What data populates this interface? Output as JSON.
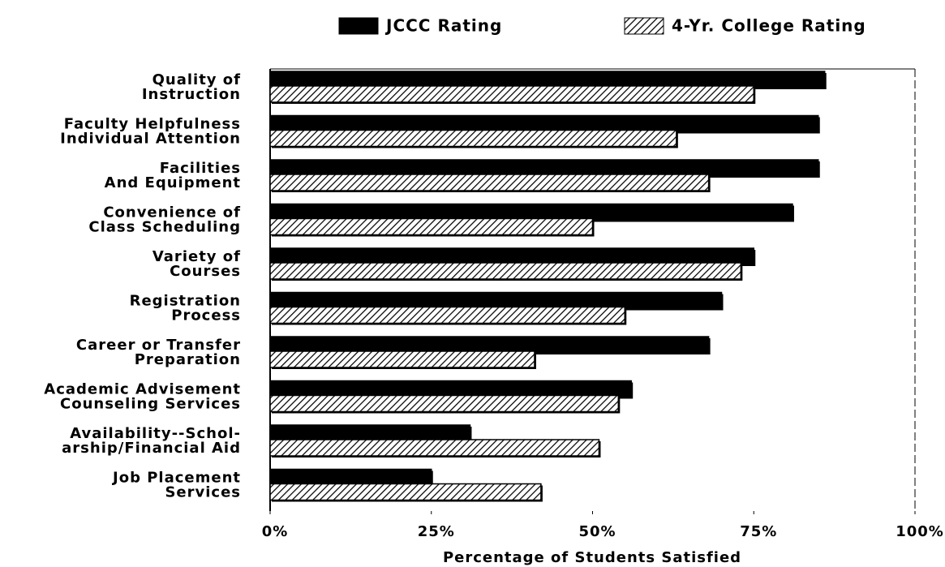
{
  "chart_data": {
    "type": "hbar",
    "x_label": "Percentage of Students Satisfied",
    "categories": [
      "Quality of\nInstruction",
      "Faculty Helpfulness\nIndividual Attention",
      "Facilities\nAnd Equipment",
      "Convenience of\nClass Scheduling",
      "Variety of\nCourses",
      "Registration\nProcess",
      "Career or Transfer\nPreparation",
      "Academic Advisement\nCounseling Services",
      "Availability--Schol-\narship/Financial Aid",
      "Job Placement\nServices"
    ],
    "series": [
      {
        "name": "JCCC Rating",
        "color": "#000000",
        "fill": "solid",
        "values": [
          86,
          85,
          85,
          81,
          75,
          70,
          68,
          56,
          31,
          25
        ]
      },
      {
        "name": "4-Yr. College Rating",
        "color": "#000000",
        "fill": "hatch",
        "values": [
          75,
          63,
          68,
          50,
          73,
          55,
          41,
          54,
          51,
          42
        ]
      }
    ],
    "xlim": [
      0,
      100
    ],
    "xticks": [
      {
        "value": 0,
        "label": "0%"
      },
      {
        "value": 25,
        "label": "25%"
      },
      {
        "value": 50,
        "label": "50%"
      },
      {
        "value": 75,
        "label": "75%"
      },
      {
        "value": 100,
        "label": "100%"
      }
    ],
    "legend": "top"
  }
}
